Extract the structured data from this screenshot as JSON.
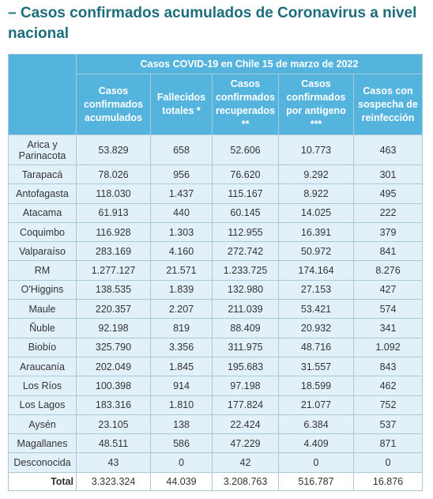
{
  "title": "– Casos confirmados acumulados de Coronavirus a nivel nacional",
  "table": {
    "caption": "Casos COVID-19 en Chile 15 de marzo de 2022",
    "columns": [
      "Casos confirmados acumulados",
      "Fallecidos totales *",
      "Casos confirmados recuperados **",
      "Casos confirmados por antígeno ***",
      "Casos con sospecha de reinfección"
    ],
    "rows": [
      [
        "Arica y Parinacota",
        "53.829",
        "658",
        "52.606",
        "10.773",
        "463"
      ],
      [
        "Tarapacá",
        "78.026",
        "956",
        "76.620",
        "9.292",
        "301"
      ],
      [
        "Antofagasta",
        "118.030",
        "1.437",
        "115.167",
        "8.922",
        "495"
      ],
      [
        "Atacama",
        "61.913",
        "440",
        "60.145",
        "14.025",
        "222"
      ],
      [
        "Coquimbo",
        "116.928",
        "1.303",
        "112.955",
        "16.391",
        "379"
      ],
      [
        "Valparaíso",
        "283.169",
        "4.160",
        "272.742",
        "50.972",
        "841"
      ],
      [
        "RM",
        "1.277.127",
        "21.571",
        "1.233.725",
        "174.164",
        "8.276"
      ],
      [
        "O'Higgins",
        "138.535",
        "1.839",
        "132.980",
        "27.153",
        "427"
      ],
      [
        "Maule",
        "220.357",
        "2.207",
        "211.039",
        "53.421",
        "574"
      ],
      [
        "Ñuble",
        "92.198",
        "819",
        "88.409",
        "20.932",
        "341"
      ],
      [
        "Biobío",
        "325.790",
        "3.356",
        "311.975",
        "48.716",
        "1.092"
      ],
      [
        "Araucanía",
        "202.049",
        "1.845",
        "195.683",
        "31.557",
        "843"
      ],
      [
        "Los Ríos",
        "100.398",
        "914",
        "97.198",
        "18.599",
        "462"
      ],
      [
        "Los Lagos",
        "183.316",
        "1.810",
        "177.824",
        "21.077",
        "752"
      ],
      [
        "Aysén",
        "23.105",
        "138",
        "22.424",
        "6.384",
        "537"
      ],
      [
        "Magallanes",
        "48.511",
        "586",
        "47.229",
        "4.409",
        "871"
      ],
      [
        "Desconocida",
        "43",
        "0",
        "42",
        "0",
        "0"
      ]
    ],
    "total": [
      "Total",
      "3.323.324",
      "44.039",
      "3.208.763",
      "516.787",
      "16.876"
    ]
  }
}
